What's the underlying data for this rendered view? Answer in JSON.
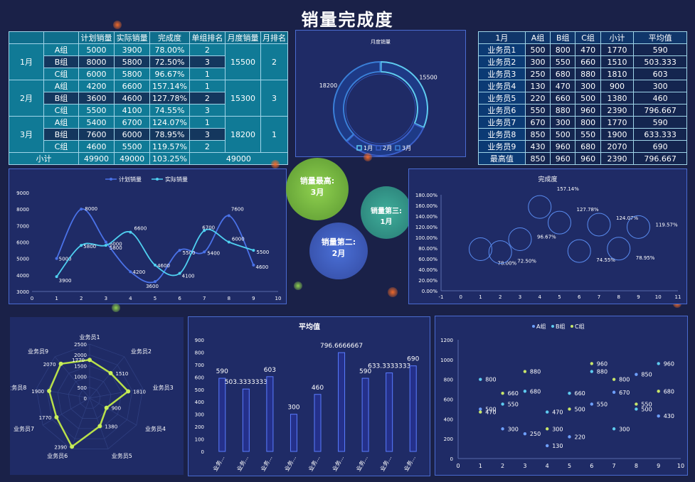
{
  "title": "销量完成度",
  "table1": {
    "headers": [
      "",
      "",
      "计划销量",
      "实际销量",
      "完成度",
      "单组排名",
      "月度销量",
      "月排名"
    ],
    "months": [
      {
        "month": "1月",
        "total": "15500",
        "rank": "2",
        "rows": [
          {
            "group": "A组",
            "plan": "5000",
            "actual": "3900",
            "rate": "78.00%",
            "rank": "2"
          },
          {
            "group": "B组",
            "plan": "8000",
            "actual": "5800",
            "rate": "72.50%",
            "rank": "3"
          },
          {
            "group": "C组",
            "plan": "6000",
            "actual": "5800",
            "rate": "96.67%",
            "rank": "1"
          }
        ]
      },
      {
        "month": "2月",
        "total": "15300",
        "rank": "3",
        "rows": [
          {
            "group": "A组",
            "plan": "4200",
            "actual": "6600",
            "rate": "157.14%",
            "rank": "1"
          },
          {
            "group": "B组",
            "plan": "3600",
            "actual": "4600",
            "rate": "127.78%",
            "rank": "2"
          },
          {
            "group": "C组",
            "plan": "5500",
            "actual": "4100",
            "rate": "74.55%",
            "rank": "3"
          }
        ]
      },
      {
        "month": "3月",
        "total": "18200",
        "rank": "1",
        "rows": [
          {
            "group": "A组",
            "plan": "5400",
            "actual": "6700",
            "rate": "124.07%",
            "rank": "1"
          },
          {
            "group": "B组",
            "plan": "7600",
            "actual": "6000",
            "rate": "78.95%",
            "rank": "3"
          },
          {
            "group": "C组",
            "plan": "4600",
            "actual": "5500",
            "rate": "119.57%",
            "rank": "2"
          }
        ]
      }
    ],
    "subtotal": {
      "label": "小计",
      "plan": "49900",
      "actual": "49000",
      "rate": "103.25%",
      "total": "49000"
    }
  },
  "table2": {
    "headers": [
      "1月",
      "A组",
      "B组",
      "C组",
      "小计",
      "平均值"
    ],
    "rows": [
      [
        "业务员1",
        "500",
        "800",
        "470",
        "1770",
        "590"
      ],
      [
        "业务员2",
        "300",
        "550",
        "660",
        "1510",
        "503.333"
      ],
      [
        "业务员3",
        "250",
        "680",
        "880",
        "1810",
        "603"
      ],
      [
        "业务员4",
        "130",
        "470",
        "300",
        "900",
        "300"
      ],
      [
        "业务员5",
        "220",
        "660",
        "500",
        "1380",
        "460"
      ],
      [
        "业务员6",
        "550",
        "880",
        "960",
        "2390",
        "796.667"
      ],
      [
        "业务员7",
        "670",
        "300",
        "800",
        "1770",
        "590"
      ],
      [
        "业务员8",
        "850",
        "500",
        "550",
        "1900",
        "633.333"
      ],
      [
        "业务员9",
        "430",
        "960",
        "680",
        "2070",
        "690"
      ],
      [
        "最高值",
        "850",
        "960",
        "960",
        "2390",
        "796.667"
      ]
    ]
  },
  "bubbles": {
    "b1": {
      "line1": "销量最高:",
      "line2": "3月"
    },
    "b2": {
      "line1": "销量第二:",
      "line2": "2月"
    },
    "b3": {
      "line1": "销量第三:",
      "line2": "1月"
    }
  },
  "chart_data": [
    {
      "id": "donut",
      "type": "pie",
      "title": "月度销量",
      "categories": [
        "1月",
        "2月",
        "3月"
      ],
      "values": [
        15500,
        15300,
        18200
      ],
      "colors": [
        "#5ecbf0",
        "#3a5ec8",
        "#3a7fd8"
      ]
    },
    {
      "id": "line",
      "type": "line",
      "x": [
        1,
        2,
        3,
        4,
        5,
        6,
        7,
        8,
        9
      ],
      "series": [
        {
          "name": "计划销量",
          "values": [
            5000,
            8000,
            6000,
            4200,
            3600,
            5500,
            5400,
            7600,
            4600
          ],
          "color": "#4a72e8"
        },
        {
          "name": "实际销量",
          "values": [
            3900,
            5800,
            5800,
            6600,
            4600,
            4100,
            6700,
            6000,
            5500
          ],
          "color": "#4fd0f0"
        }
      ],
      "xlim": [
        0,
        10
      ],
      "ylim": [
        3000,
        9000
      ],
      "yticks": [
        "3000",
        "4000",
        "5000",
        "6000",
        "7000",
        "8000",
        "9000"
      ],
      "xticks": [
        "0",
        "1",
        "2",
        "3",
        "4",
        "5",
        "6",
        "7",
        "8",
        "9",
        "10"
      ]
    },
    {
      "id": "scatter-rate",
      "type": "scatter",
      "title": "完成度",
      "x": [
        1,
        2,
        3,
        4,
        5,
        6,
        7,
        8,
        9
      ],
      "values": [
        0.78,
        0.725,
        0.9667,
        1.5714,
        1.2778,
        0.7455,
        1.2407,
        0.7895,
        1.1957
      ],
      "labels": [
        "",
        "78.00%",
        "72.50%",
        "96.67%",
        "157.14%",
        "127.78%",
        "74.55%",
        "124.07%",
        "78.95%",
        "119.57%"
      ],
      "xlim": [
        -1,
        11
      ],
      "ylim": [
        0,
        1.8
      ],
      "yticks": [
        "0.00%",
        "20.00%",
        "40.00%",
        "60.00%",
        "80.00%",
        "100.00%",
        "120.00%",
        "140.00%",
        "160.00%",
        "180.00%"
      ],
      "xticks": [
        "-1",
        "0",
        "1",
        "2",
        "3",
        "4",
        "5",
        "6",
        "7",
        "8",
        "9",
        "10",
        "11"
      ]
    },
    {
      "id": "radar",
      "type": "radar",
      "categories": [
        "业务员1",
        "业务员2",
        "业务员3",
        "业务员4",
        "业务员5",
        "业务员6",
        "业务员7",
        "业务员8",
        "业务员9"
      ],
      "values": [
        1770,
        1510,
        1810,
        900,
        1380,
        2390,
        1770,
        1900,
        2070
      ],
      "rmax": 2500,
      "rticks": [
        "0",
        "500",
        "1000",
        "1500",
        "2000",
        "2500"
      ]
    },
    {
      "id": "bar",
      "type": "bar",
      "title": "平均值",
      "categories": [
        "业务...",
        "业务...",
        "业务...",
        "业务...",
        "业务...",
        "业务...",
        "业务...",
        "业务...",
        "业务..."
      ],
      "values": [
        590,
        503.3333333,
        603,
        300,
        460,
        796.6666667,
        590,
        633.3333333,
        690
      ],
      "labels": [
        "590",
        "503.3333333",
        "603",
        "300",
        "460",
        "796.6666667",
        "590",
        "633.3333333",
        "690"
      ],
      "ylim": [
        0,
        900
      ],
      "yticks": [
        "0",
        "100",
        "200",
        "300",
        "400",
        "500",
        "600",
        "700",
        "800",
        "900"
      ]
    },
    {
      "id": "scatter-groups",
      "type": "scatter",
      "x": [
        1,
        2,
        3,
        4,
        5,
        6,
        7,
        8,
        9
      ],
      "series": [
        {
          "name": "A组",
          "values": [
            500,
            300,
            250,
            130,
            220,
            550,
            670,
            850,
            430
          ],
          "color": "#6ea0ff"
        },
        {
          "name": "B组",
          "values": [
            800,
            550,
            680,
            470,
            660,
            880,
            300,
            500,
            960
          ],
          "color": "#5ecbf0"
        },
        {
          "name": "C组",
          "values": [
            470,
            660,
            880,
            300,
            500,
            960,
            800,
            550,
            680
          ],
          "color": "#c8e66a"
        }
      ],
      "xlim": [
        0,
        10
      ],
      "ylim": [
        0,
        1200
      ],
      "yticks": [
        "0",
        "200",
        "400",
        "600",
        "800",
        "1000",
        "1200"
      ],
      "xticks": [
        "0",
        "1",
        "2",
        "3",
        "4",
        "5",
        "6",
        "7",
        "8",
        "9",
        "10"
      ]
    }
  ]
}
